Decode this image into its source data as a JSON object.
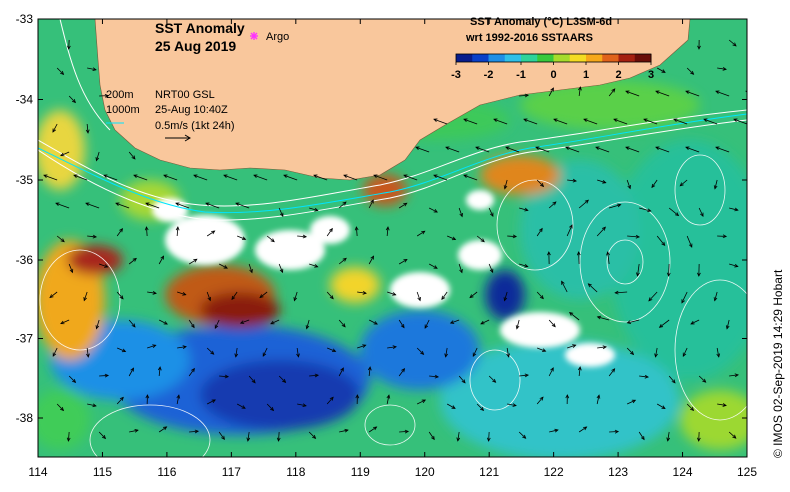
{
  "map": {
    "title_line1": "SST Anomaly",
    "title_line2": "25 Aug 2019",
    "argo_label": "Argo",
    "argo_marker_color": "#ff33ff",
    "land_color": "#f9c79c",
    "ocean_shelf_color": "#22c06a",
    "lon_ticks": [
      "114",
      "115",
      "116",
      "117",
      "118",
      "119",
      "120",
      "121",
      "122",
      "123",
      "124",
      "125"
    ],
    "lat_ticks": [
      "-33",
      "-34",
      "-35",
      "-36",
      "-37",
      "-38"
    ],
    "isobath_labels": [
      "200m",
      "1000m"
    ],
    "product_label": "NRT00 GSL",
    "time_label": "25-Aug 10:40Z",
    "vector_scale_label": "0.5m/s (1kt 24h)",
    "credit": "© IMOS 02-Sep-2019 14:29 Hobart"
  },
  "colorbar": {
    "title_line1": "SST Anomaly (°C) L3SM-6d",
    "title_line2": "wrt 1992-2016 SSTAARS",
    "ticks": [
      "-3",
      "-2",
      "-1",
      "0",
      "1",
      "2",
      "3"
    ],
    "colors": [
      "#081d8c",
      "#0a40c8",
      "#1f8fe6",
      "#30c0e8",
      "#2fd39a",
      "#38c93c",
      "#a6dc2c",
      "#f4dc22",
      "#f6a81a",
      "#e0621a",
      "#a52010",
      "#6a0d08"
    ]
  }
}
